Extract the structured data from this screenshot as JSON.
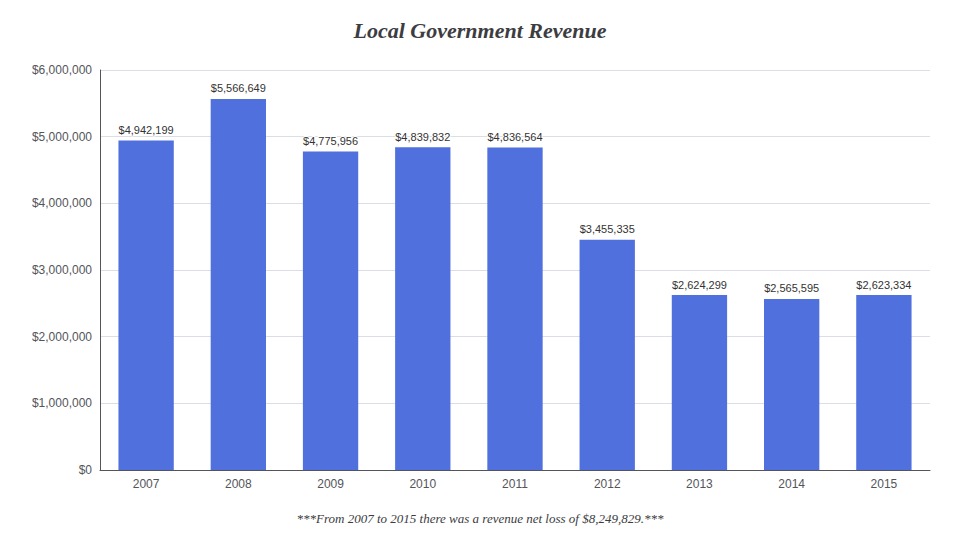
{
  "chart_data": {
    "type": "bar",
    "title": "Local Government Revenue",
    "categories": [
      "2007",
      "2008",
      "2009",
      "2010",
      "2011",
      "2012",
      "2013",
      "2014",
      "2015"
    ],
    "values": [
      4942199,
      5566649,
      4775956,
      4839832,
      4836564,
      3455335,
      2624299,
      2565595,
      2623334
    ],
    "value_labels": [
      "$4,942,199",
      "$5,566,649",
      "$4,775,956",
      "$4,839,832",
      "$4,836,564",
      "$3,455,335",
      "$2,624,299",
      "$2,565,595",
      "$2,623,334"
    ],
    "data_labels": true,
    "ylim": [
      0,
      6000000
    ],
    "yticks": [
      {
        "value": 0,
        "label": "$0"
      },
      {
        "value": 1000000,
        "label": "$1,000,000"
      },
      {
        "value": 2000000,
        "label": "$2,000,000"
      },
      {
        "value": 3000000,
        "label": "$3,000,000"
      },
      {
        "value": 4000000,
        "label": "$4,000,000"
      },
      {
        "value": 5000000,
        "label": "$5,000,000"
      },
      {
        "value": 6000000,
        "label": "$6,000,000"
      }
    ],
    "grid": true,
    "annotations": [
      "***From 2007 to 2015 there was a revenue net loss of $8,249,829.***"
    ]
  }
}
